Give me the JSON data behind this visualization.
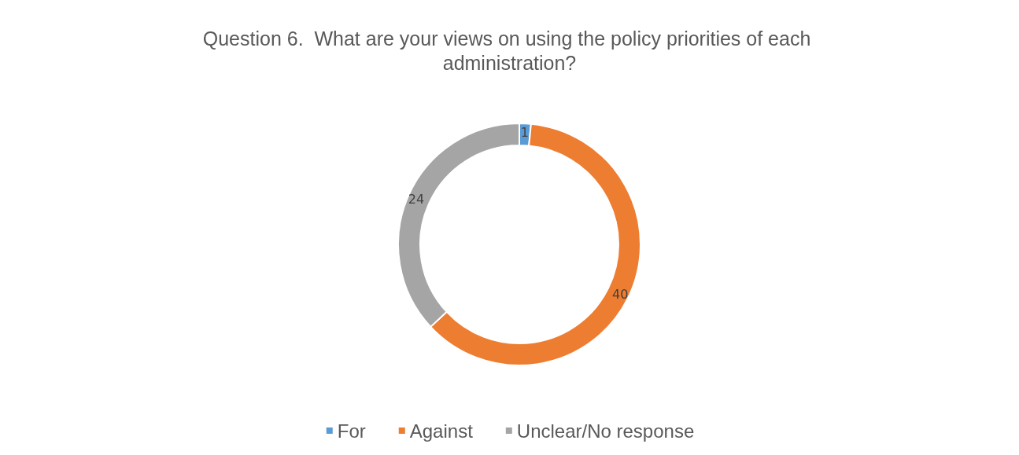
{
  "chart_data": {
    "type": "donut",
    "title": "Question 6.  What are your views on using the policy priorities of each administration?",
    "categories": [
      "For",
      "Against",
      "Unclear/No response"
    ],
    "values": [
      1,
      40,
      24
    ],
    "colors": [
      "#5b9bd5",
      "#ed7d31",
      "#a5a5a5"
    ],
    "data_labels": true,
    "legend": "bottom"
  }
}
